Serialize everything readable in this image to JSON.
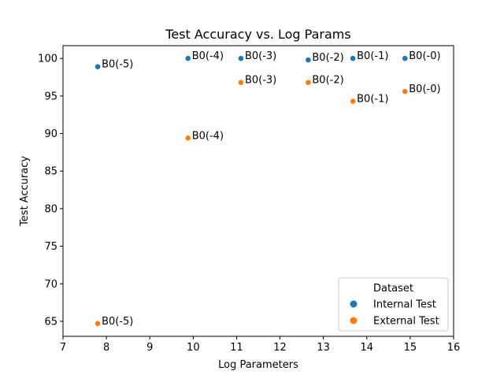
{
  "chart_data": {
    "type": "scatter",
    "title": "Test Accuracy vs. Log Params",
    "xlabel": "Log Parameters",
    "ylabel": "Test Accuracy",
    "xlim": [
      7,
      16
    ],
    "ylim": [
      63,
      101.7
    ],
    "xticks": [
      7,
      8,
      9,
      10,
      11,
      12,
      13,
      14,
      15,
      16
    ],
    "yticks": [
      65,
      70,
      75,
      80,
      85,
      90,
      95,
      100
    ],
    "grid": false,
    "legend": {
      "title": "Dataset",
      "position": "lower-right"
    },
    "series": [
      {
        "name": "Internal Test",
        "color": "#1f77b4",
        "points": [
          {
            "x": 7.8,
            "y": 98.9,
            "label": "B0(-5)"
          },
          {
            "x": 9.88,
            "y": 100.0,
            "label": "B0(-4)"
          },
          {
            "x": 11.1,
            "y": 100.0,
            "label": "B0(-3)"
          },
          {
            "x": 12.65,
            "y": 99.8,
            "label": "B0(-2)"
          },
          {
            "x": 13.68,
            "y": 100.0,
            "label": "B0(-1)"
          },
          {
            "x": 14.88,
            "y": 100.0,
            "label": "B0(-0)"
          }
        ]
      },
      {
        "name": "External Test",
        "color": "#ff7f0e",
        "points": [
          {
            "x": 7.8,
            "y": 64.7,
            "label": "B0(-5)"
          },
          {
            "x": 9.88,
            "y": 89.4,
            "label": "B0(-4)"
          },
          {
            "x": 11.1,
            "y": 96.8,
            "label": "B0(-3)"
          },
          {
            "x": 12.65,
            "y": 96.8,
            "label": "B0(-2)"
          },
          {
            "x": 13.68,
            "y": 94.3,
            "label": "B0(-1)"
          },
          {
            "x": 14.88,
            "y": 95.6,
            "label": "B0(-0)"
          }
        ]
      }
    ]
  }
}
